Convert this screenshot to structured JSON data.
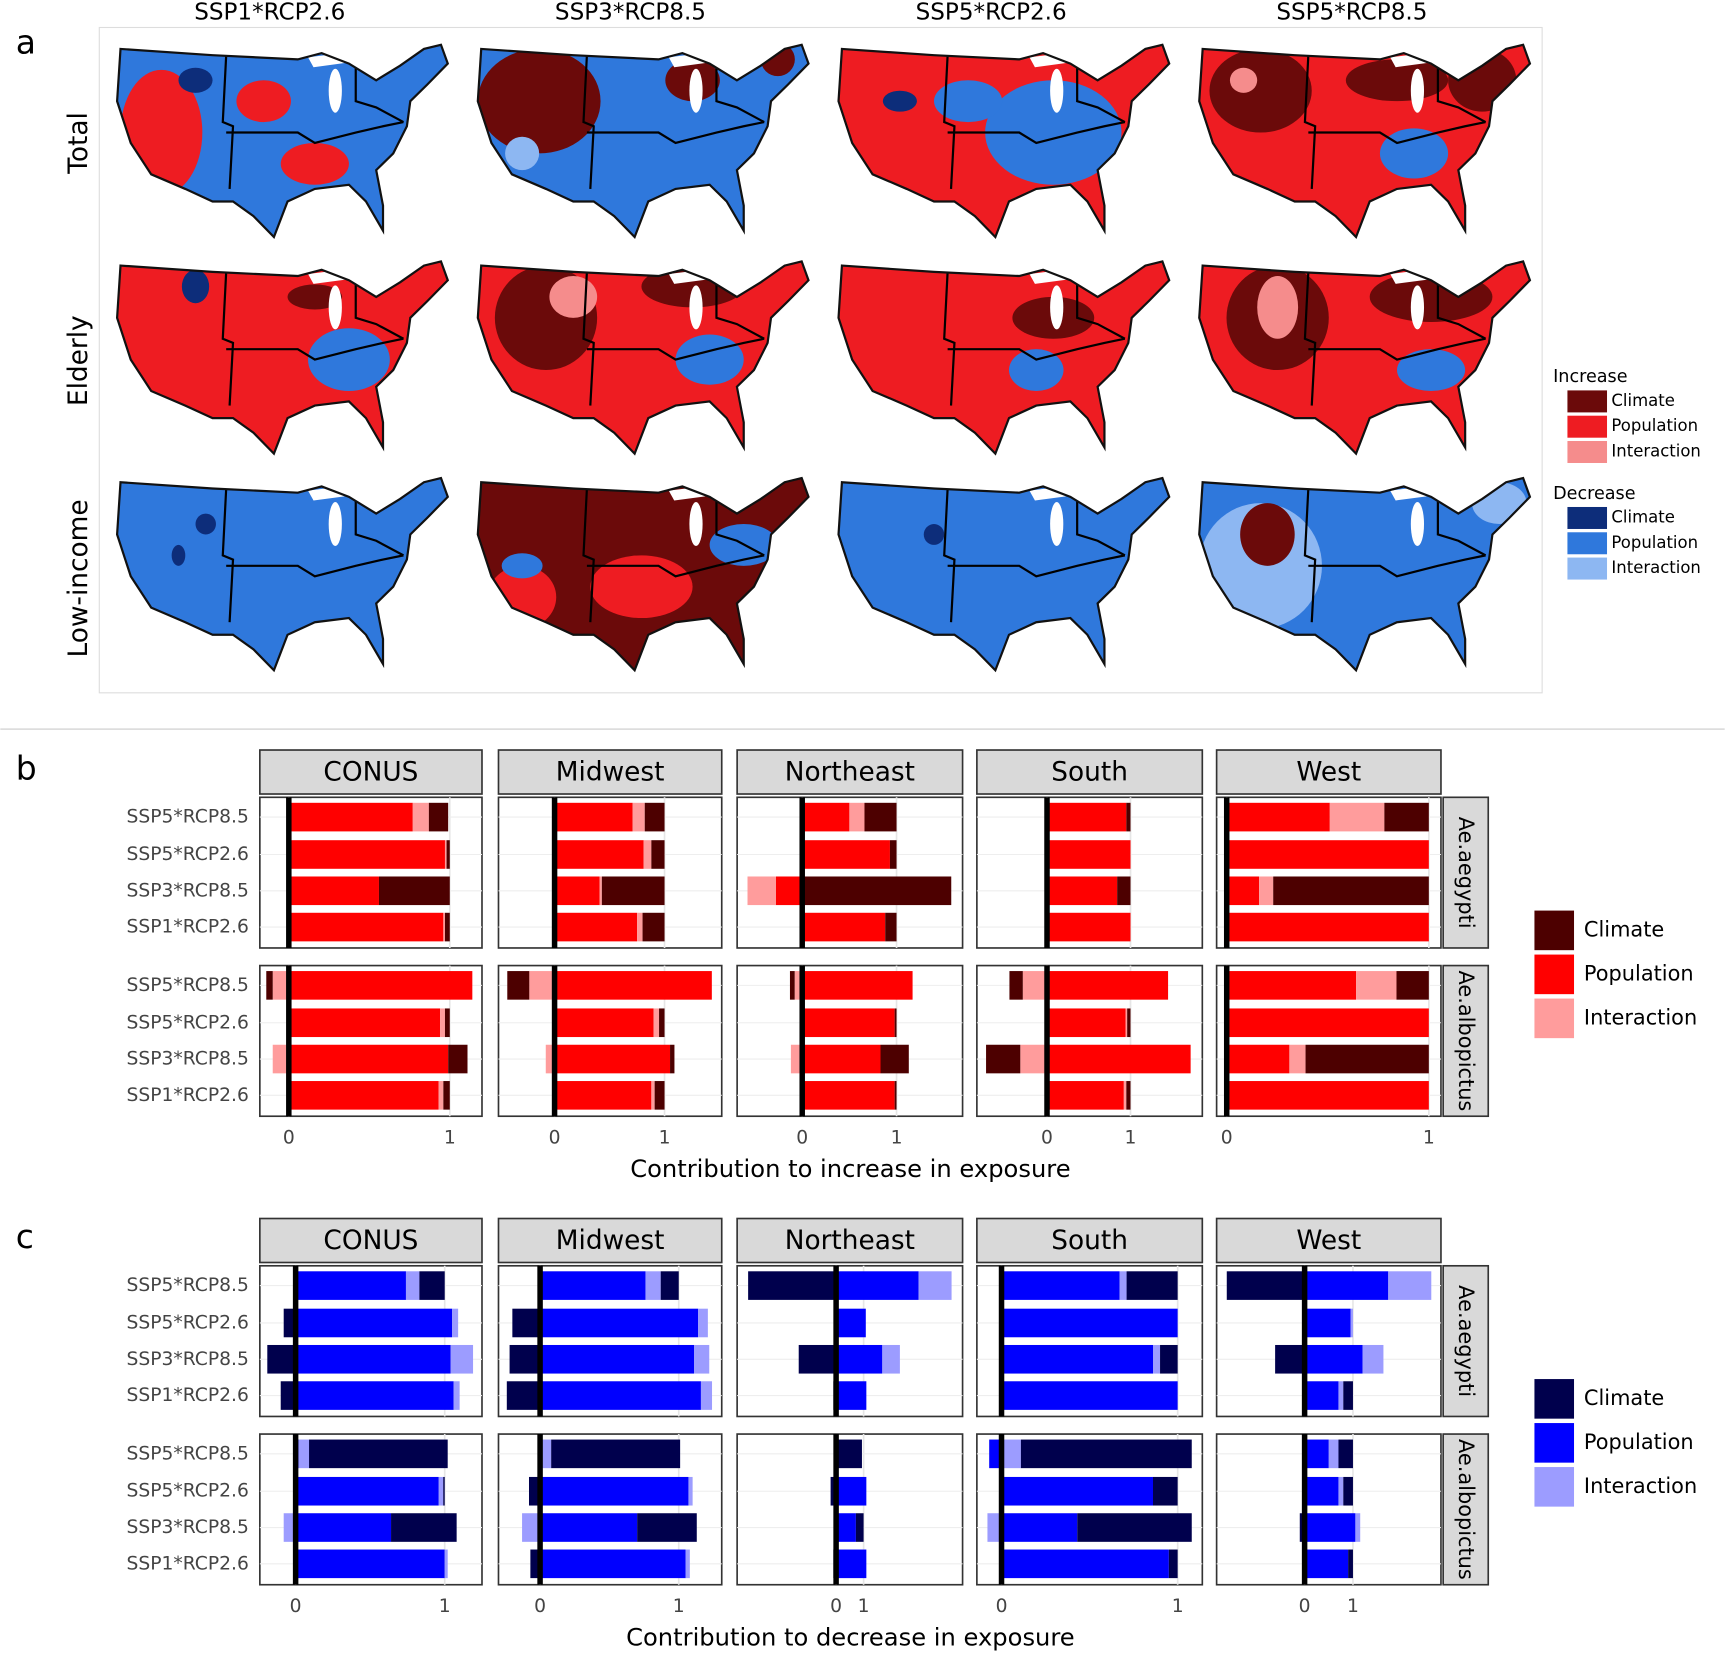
{
  "panel_a": {
    "label": "a",
    "columns": [
      "SSP1*RCP2.6",
      "SSP3*RCP8.5",
      "SSP5*RCP2.6",
      "SSP5*RCP8.5"
    ],
    "rows": [
      "Total",
      "Elderly",
      "Low-income"
    ],
    "legend": {
      "increase": {
        "title": "Increase",
        "items": [
          {
            "name": "Climate",
            "color": "#6b0a0a"
          },
          {
            "name": "Population",
            "color": "#ee1c22"
          },
          {
            "name": "Interaction",
            "color": "#f58c8c"
          }
        ]
      },
      "decrease": {
        "title": "Decrease",
        "items": [
          {
            "name": "Climate",
            "color": "#0d2d7a"
          },
          {
            "name": "Population",
            "color": "#2f78dc"
          },
          {
            "name": "Interaction",
            "color": "#8db7f2"
          }
        ]
      }
    }
  },
  "chart_data": [
    {
      "type": "bar",
      "panel_label": "b",
      "xlabel": "Contribution to increase in exposure",
      "categories": [
        "SSP5*RCP8.5",
        "SSP5*RCP2.6",
        "SSP3*RCP8.5",
        "SSP1*RCP2.6"
      ],
      "strips": [
        "Ae.aegypti",
        "Ae.albopictus"
      ],
      "series": [
        {
          "name": "Climate",
          "color": "#4d0000"
        },
        {
          "name": "Population",
          "color": "#ff0000"
        },
        {
          "name": "Interaction",
          "color": "#ff9c9c"
        }
      ],
      "facets": [
        {
          "title": "CONUS",
          "xlim": [
            -0.18,
            1.2
          ],
          "xticks": [
            0,
            1
          ],
          "values": [
            [
              [
                0.12,
                0.02,
                0.44,
                0.03
              ],
              [
                0.77,
                0.97,
                0.56,
                0.96
              ],
              [
                0.1,
                0.01,
                0,
                0.01
              ]
            ],
            [
              [
                -0.04,
                0.03,
                0.12,
                0.04
              ],
              [
                1.14,
                0.94,
                0.99,
                0.93
              ],
              [
                -0.1,
                0.03,
                -0.1,
                0.03
              ]
            ]
          ]
        },
        {
          "title": "Midwest",
          "xlim": [
            -0.51,
            1.52
          ],
          "xticks": [
            0,
            1
          ],
          "values": [
            [
              [
                0.18,
                0.12,
                0.57,
                0.2
              ],
              [
                0.71,
                0.81,
                0.41,
                0.75
              ],
              [
                0.11,
                0.07,
                0.02,
                0.05
              ]
            ],
            [
              [
                -0.2,
                0.05,
                0.04,
                0.09
              ],
              [
                1.43,
                0.9,
                1.05,
                0.88
              ],
              [
                -0.23,
                0.05,
                -0.08,
                0.03
              ]
            ]
          ]
        },
        {
          "title": "Northeast",
          "xlim": [
            -0.69,
            1.7
          ],
          "xticks": [
            0,
            1
          ],
          "values": [
            [
              [
                0.34,
                0.07,
                1.58,
                0.12
              ],
              [
                0.5,
                0.93,
                -0.28,
                0.88
              ],
              [
                0.16,
                0,
                -0.3,
                0
              ]
            ],
            [
              [
                -0.05,
                0.02,
                0.3,
                0.02
              ],
              [
                1.17,
                0.98,
                0.83,
                0.98
              ],
              [
                -0.08,
                0,
                -0.12,
                0
              ]
            ]
          ]
        },
        {
          "title": "South",
          "xlim": [
            -0.84,
            1.86
          ],
          "xticks": [
            0,
            1
          ],
          "values": [
            [
              [
                0.05,
                0,
                0.16,
                0
              ],
              [
                0.95,
                1.0,
                0.84,
                1.0
              ],
              [
                0,
                0,
                0,
                0
              ]
            ],
            [
              [
                -0.16,
                0.04,
                -0.41,
                0.05
              ],
              [
                1.45,
                0.94,
                1.72,
                0.92
              ],
              [
                -0.29,
                0.02,
                -0.32,
                0.03
              ]
            ]
          ]
        },
        {
          "title": "West",
          "xlim": [
            -0.05,
            1.06
          ],
          "xticks": [
            0,
            1
          ],
          "values": [
            [
              [
                0.22,
                0,
                0.77,
                0
              ],
              [
                0.51,
                1.0,
                0.16,
                1.0
              ],
              [
                0.27,
                0,
                0.07,
                0
              ]
            ],
            [
              [
                0.16,
                0,
                0.61,
                0
              ],
              [
                0.64,
                1.0,
                0.31,
                1.0
              ],
              [
                0.2,
                0,
                0.08,
                0
              ]
            ]
          ]
        }
      ]
    },
    {
      "type": "bar",
      "panel_label": "c",
      "xlabel": "Contribution to decrease in exposure",
      "categories": [
        "SSP5*RCP8.5",
        "SSP5*RCP2.6",
        "SSP3*RCP8.5",
        "SSP1*RCP2.6"
      ],
      "strips": [
        "Ae.aegypti",
        "Ae.albopictus"
      ],
      "series": [
        {
          "name": "Climate",
          "color": "#00004d"
        },
        {
          "name": "Population",
          "color": "#0000ff"
        },
        {
          "name": "Interaction",
          "color": "#9c9cff"
        }
      ],
      "facets": [
        {
          "title": "CONUS",
          "xlim": [
            -0.24,
            1.25
          ],
          "xticks": [
            0,
            1
          ],
          "values": [
            [
              [
                0.17,
                -0.08,
                -0.19,
                -0.1
              ],
              [
                0.74,
                1.05,
                1.04,
                1.06
              ],
              [
                0.09,
                0.04,
                0.15,
                0.04
              ]
            ],
            [
              [
                0.93,
                0.01,
                0.44,
                0
              ],
              [
                0.02,
                0.96,
                0.64,
                1.0
              ],
              [
                0.07,
                0.03,
                -0.08,
                0.02
              ]
            ]
          ]
        },
        {
          "title": "Midwest",
          "xlim": [
            -0.3,
            1.31
          ],
          "xticks": [
            0,
            1
          ],
          "values": [
            [
              [
                0.13,
                -0.2,
                -0.22,
                -0.24
              ],
              [
                0.76,
                1.14,
                1.11,
                1.16
              ],
              [
                0.11,
                0.07,
                0.11,
                0.08
              ]
            ],
            [
              [
                0.93,
                -0.08,
                0.43,
                -0.07
              ],
              [
                0,
                1.07,
                0.7,
                1.05
              ],
              [
                0.08,
                0.03,
                -0.13,
                0.03
              ]
            ]
          ]
        },
        {
          "title": "Northeast",
          "xlim": [
            -3.6,
            4.6
          ],
          "xticks": [
            0,
            1
          ],
          "values": [
            [
              [
                -3.2,
                0,
                -1.36,
                -0.1
              ],
              [
                3.0,
                1.08,
                1.68,
                1.1
              ],
              [
                1.2,
                0,
                0.64,
                0
              ]
            ],
            [
              [
                0.88,
                -0.2,
                0.28,
                -0.1
              ],
              [
                0,
                1.1,
                0.72,
                1.1
              ],
              [
                0.06,
                0,
                0,
                0
              ]
            ]
          ]
        },
        {
          "title": "South",
          "xlim": [
            -0.14,
            1.14
          ],
          "xticks": [
            0,
            1
          ],
          "values": [
            [
              [
                0.29,
                0,
                0.1,
                0
              ],
              [
                0.67,
                1.0,
                0.86,
                1.0
              ],
              [
                0.04,
                0,
                0.04,
                0
              ]
            ],
            [
              [
                0.97,
                0.14,
                0.65,
                0.05
              ],
              [
                -0.07,
                0.86,
                0.43,
                0.95
              ],
              [
                0.11,
                0,
                -0.08,
                0
              ]
            ]
          ]
        },
        {
          "title": "West",
          "xlim": [
            -1.82,
            2.82
          ],
          "xticks": [
            0,
            1
          ],
          "values": [
            [
              [
                -1.61,
                0,
                -0.61,
                0.2
              ],
              [
                1.73,
                0.95,
                1.2,
                0.7
              ],
              [
                0.89,
                0.05,
                0.43,
                0.1
              ]
            ],
            [
              [
                0.3,
                0.2,
                -0.1,
                0.1
              ],
              [
                0.5,
                0.7,
                1.05,
                0.9
              ],
              [
                0.2,
                0.1,
                0.1,
                0
              ]
            ]
          ]
        }
      ]
    }
  ]
}
